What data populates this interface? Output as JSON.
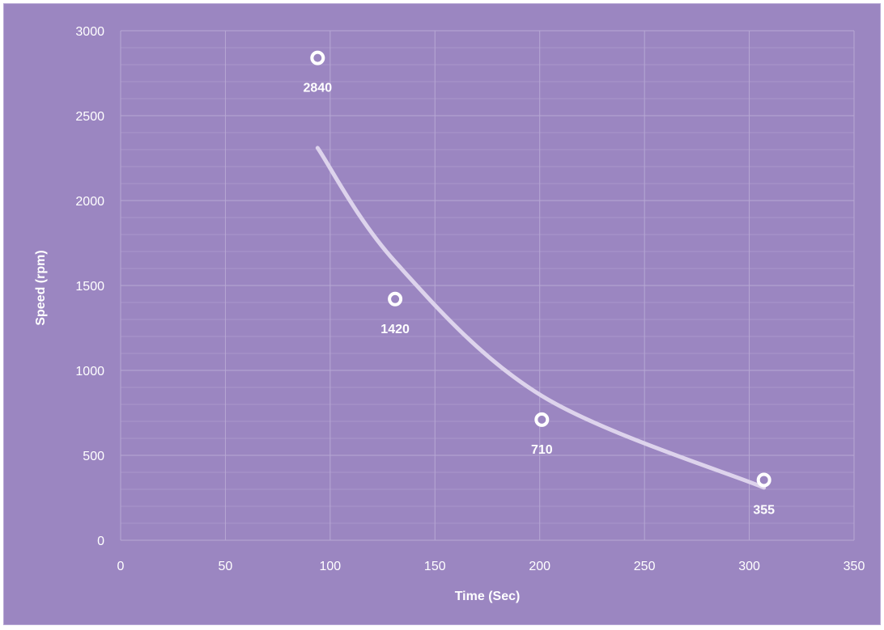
{
  "chart_data": {
    "type": "scatter",
    "title": "",
    "xlabel": "Time (Sec)",
    "ylabel": "Speed (rpm)",
    "xlim": [
      0,
      350
    ],
    "ylim": [
      0,
      3000
    ],
    "x_ticks": [
      "0",
      "50",
      "100",
      "150",
      "200",
      "250",
      "300",
      "350"
    ],
    "y_ticks": [
      "0",
      "500",
      "1000",
      "1500",
      "2000",
      "2500",
      "3000"
    ],
    "grid": {
      "major": true,
      "minor_horizontal": true
    },
    "legend": "none",
    "series": [
      {
        "marker": "hollow-circle",
        "x": [
          94,
          131,
          201,
          307
        ],
        "y": [
          2840,
          1420,
          710,
          355
        ],
        "labels": [
          "2840",
          "1420",
          "710",
          "355"
        ]
      }
    ],
    "trendline": {
      "type": "power",
      "x_range": [
        94,
        307
      ],
      "points": [
        [
          94,
          2310
        ],
        [
          131,
          1640
        ],
        [
          201,
          850
        ],
        [
          307,
          310
        ]
      ]
    },
    "colors": {
      "background": "#9b86c1",
      "grid_major": "#b7a8d4",
      "grid_minor": "#a996cb",
      "marker": "#ffffff",
      "trendline": "#ddd3ec",
      "text": "#ffffff"
    }
  }
}
